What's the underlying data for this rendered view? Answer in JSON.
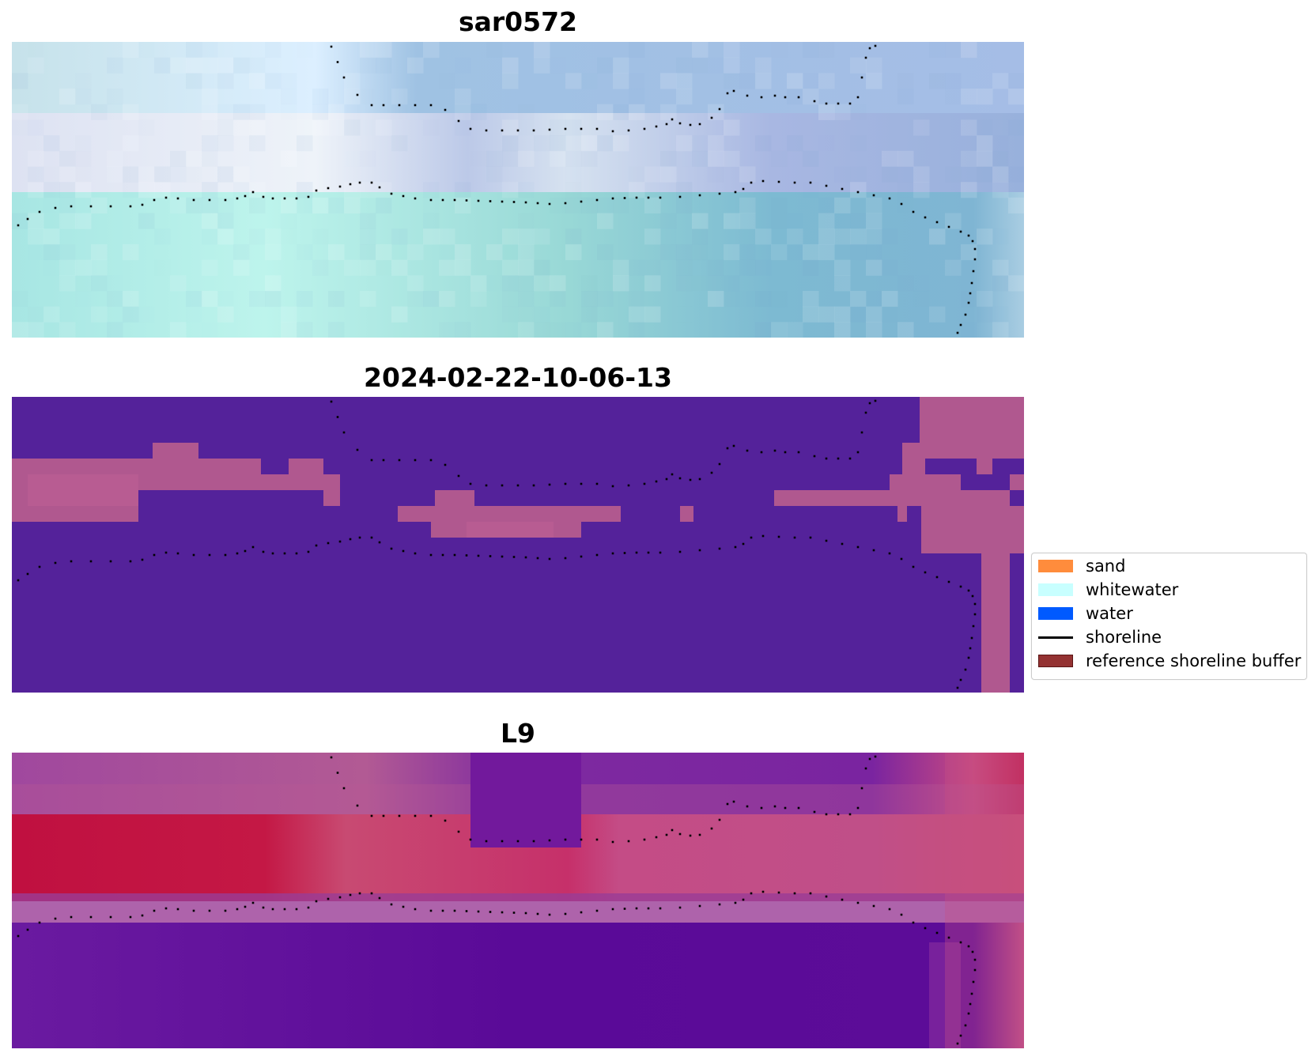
{
  "titles": {
    "panel1": "sar0572",
    "panel2": "2024-02-22-10-06-13",
    "panel3": "L9"
  },
  "legend": {
    "items": [
      {
        "label": "sand",
        "color": "#ff8c3c",
        "kind": "patch"
      },
      {
        "label": "whitewater",
        "color": "#c8ffff",
        "kind": "patch"
      },
      {
        "label": "water",
        "color": "#005aff",
        "kind": "patch"
      },
      {
        "label": "shoreline",
        "color": "#000000",
        "kind": "line"
      },
      {
        "label": "reference shoreline buffer",
        "color": "#943232",
        "kind": "patch-edged"
      }
    ]
  },
  "colors": {
    "rgb_water": "#8fd6d4",
    "rgb_water_deep": "#78b0cf",
    "rgb_sky": "#94b8df",
    "rgb_white": "#e8ecf8",
    "class_water": "#54229a",
    "class_sand_overlay": "#b0588f",
    "mndwi_water": "#5b0c9a",
    "mndwi_sand": "#c5103c",
    "mndwi_mid": "#c0508a",
    "shoreline_dots": "#000000"
  }
}
